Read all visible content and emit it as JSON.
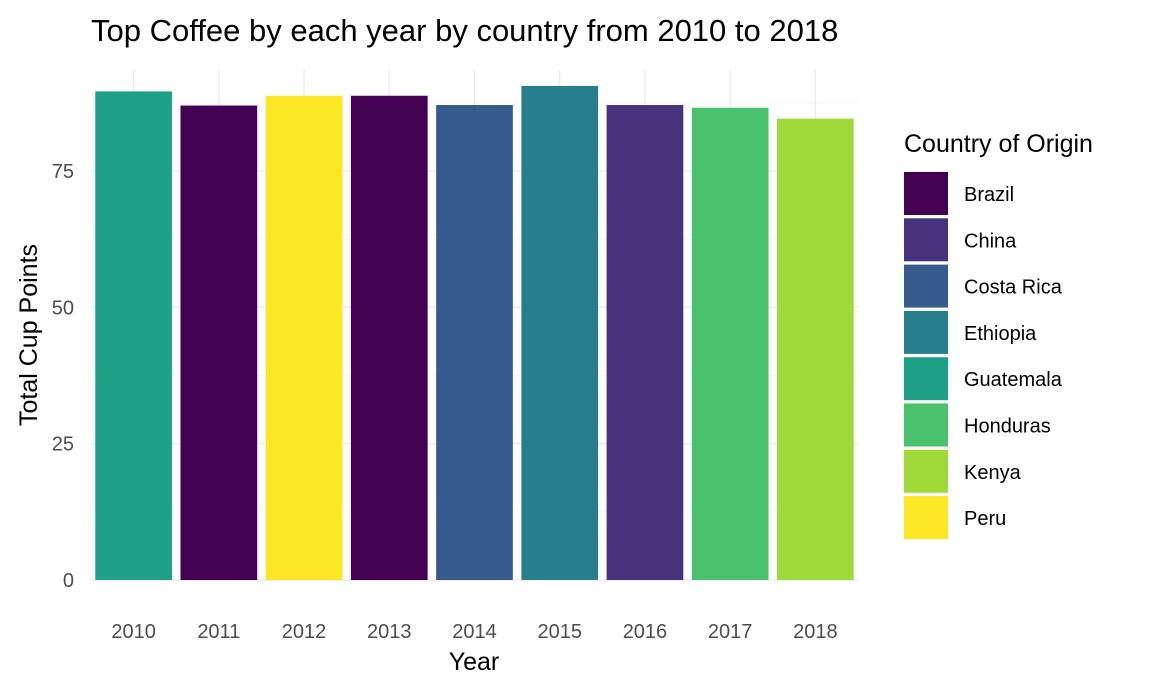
{
  "chart_data": {
    "type": "bar",
    "title": "Top Coffee by each year by country from 2010 to 2018",
    "xlabel": "Year",
    "ylabel": "Total Cup Points",
    "categories": [
      "2010",
      "2011",
      "2012",
      "2013",
      "2014",
      "2015",
      "2016",
      "2017",
      "2018"
    ],
    "values": [
      89.6,
      87.0,
      88.8,
      88.8,
      87.1,
      90.6,
      87.1,
      86.6,
      84.6
    ],
    "bar_country": [
      "Guatemala",
      "Brazil",
      "Peru",
      "Brazil",
      "Costa Rica",
      "Ethiopia",
      "China",
      "Honduras",
      "Kenya"
    ],
    "ylim": [
      0,
      92
    ],
    "yticks": [
      0,
      25,
      50,
      75
    ],
    "grid": true,
    "legend": {
      "title": "Country of Origin",
      "position": "right",
      "entries": [
        {
          "name": "Brazil",
          "color": "#440154"
        },
        {
          "name": "China",
          "color": "#46337e"
        },
        {
          "name": "Costa Rica",
          "color": "#365c8d"
        },
        {
          "name": "Ethiopia",
          "color": "#277f8e"
        },
        {
          "name": "Guatemala",
          "color": "#1fa187"
        },
        {
          "name": "Honduras",
          "color": "#4ac16d"
        },
        {
          "name": "Kenya",
          "color": "#a0da39"
        },
        {
          "name": "Peru",
          "color": "#fde725"
        }
      ]
    }
  }
}
